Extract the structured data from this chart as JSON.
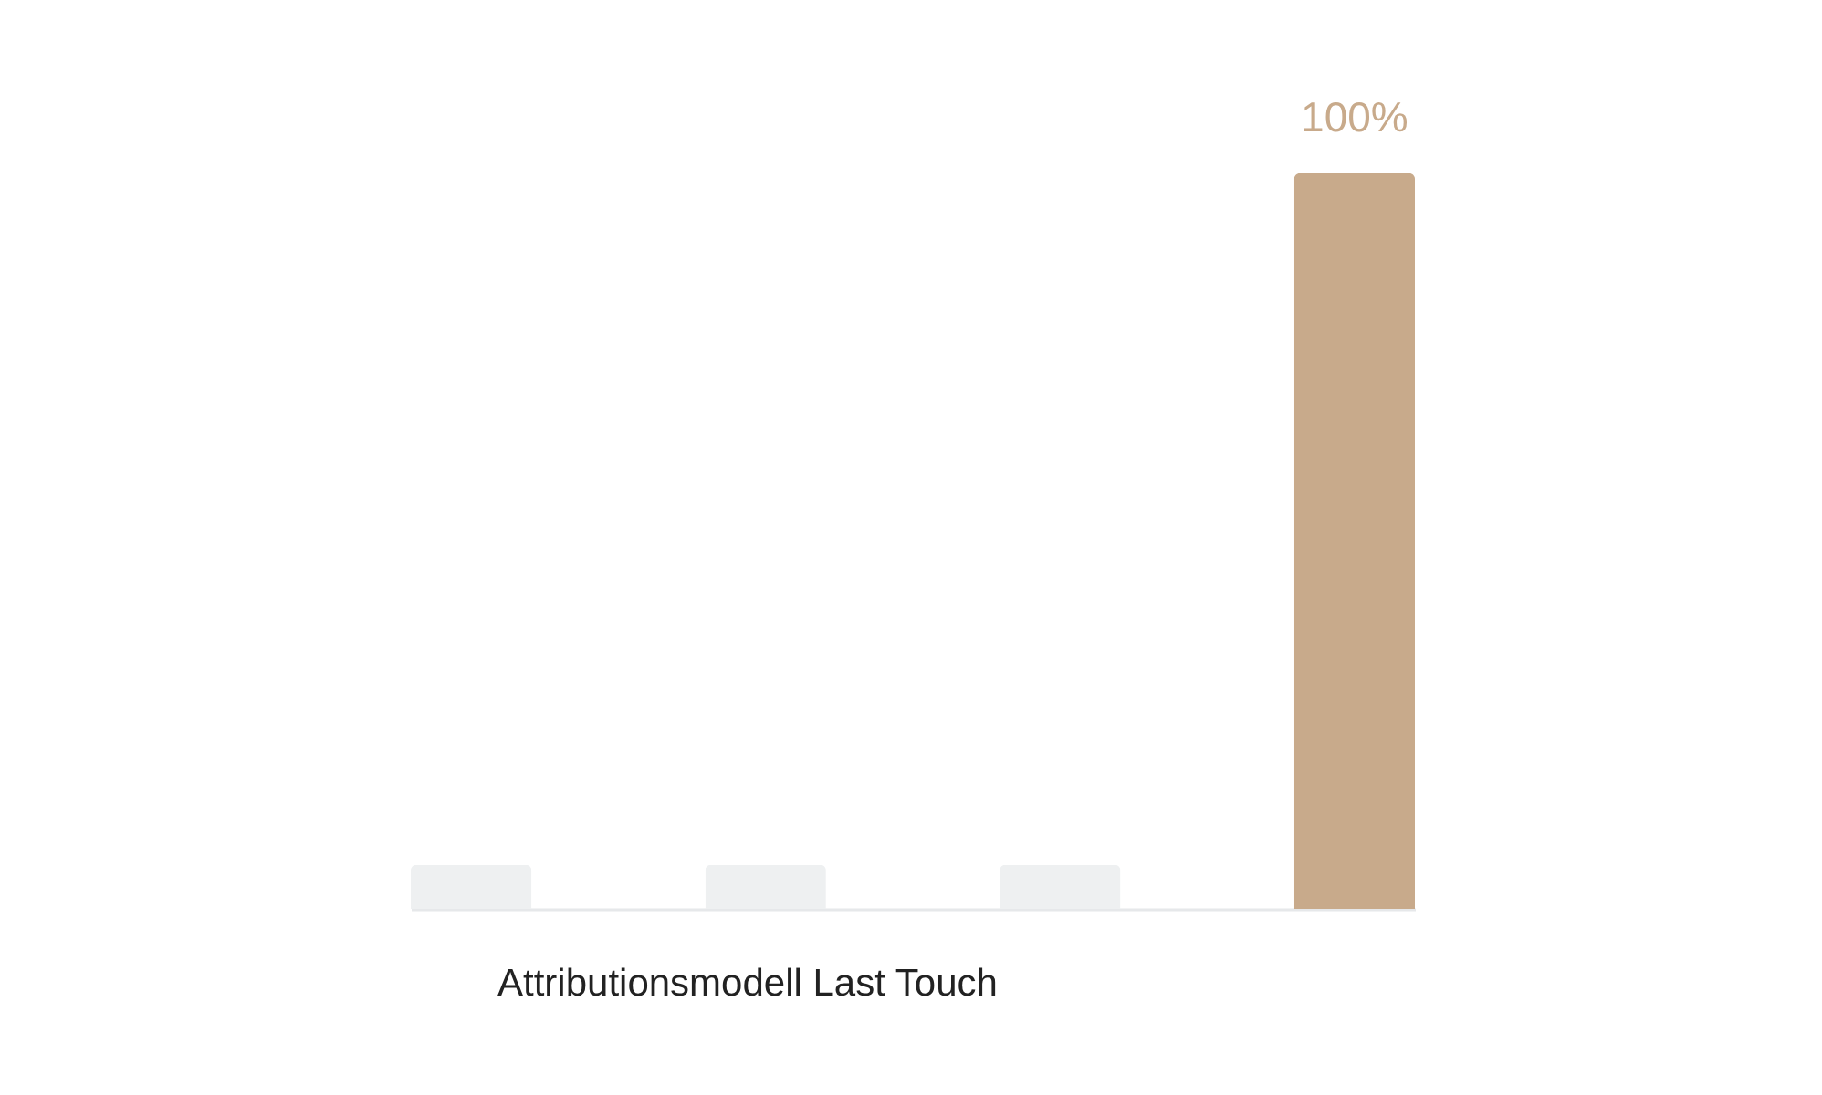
{
  "chart_data": {
    "type": "bar",
    "ylim": [
      0,
      100
    ],
    "xlabel": "Attributionsmodell Last Touch",
    "categories": [
      null,
      null,
      null,
      null
    ],
    "values": [
      6,
      6,
      6,
      100
    ],
    "colors": [
      "#eef0f1",
      "#eef0f1",
      "#eef0f1",
      "#c8aa8b"
    ],
    "value_labels": [
      null,
      null,
      null,
      "100%"
    ],
    "tick_labels": false
  }
}
